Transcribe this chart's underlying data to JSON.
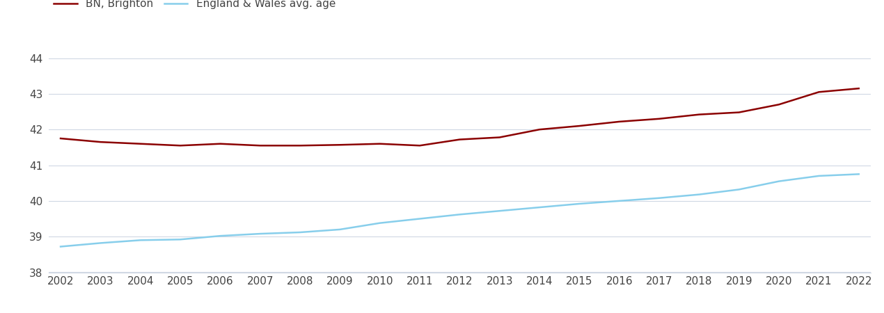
{
  "years": [
    2002,
    2003,
    2004,
    2005,
    2006,
    2007,
    2008,
    2009,
    2010,
    2011,
    2012,
    2013,
    2014,
    2015,
    2016,
    2017,
    2018,
    2019,
    2020,
    2021,
    2022
  ],
  "brighton": [
    41.75,
    41.65,
    41.6,
    41.55,
    41.6,
    41.55,
    41.55,
    41.57,
    41.6,
    41.55,
    41.72,
    41.78,
    42.0,
    42.1,
    42.22,
    42.3,
    42.42,
    42.48,
    42.7,
    43.05,
    43.15
  ],
  "england_wales": [
    38.72,
    38.82,
    38.9,
    38.92,
    39.02,
    39.08,
    39.12,
    39.2,
    39.38,
    39.5,
    39.62,
    39.72,
    39.82,
    39.92,
    40.0,
    40.08,
    40.18,
    40.32,
    40.55,
    40.7,
    40.75
  ],
  "brighton_color": "#8b0000",
  "england_wales_color": "#87ceeb",
  "background_color": "#ffffff",
  "grid_color": "#d0d8e4",
  "ylim": [
    38,
    44.4
  ],
  "yticks": [
    38,
    39,
    40,
    41,
    42,
    43,
    44
  ],
  "legend_brighton": "BN, Brighton",
  "legend_ew": "England & Wales avg. age",
  "line_width": 1.8,
  "tick_label_fontsize": 11,
  "legend_fontsize": 11
}
